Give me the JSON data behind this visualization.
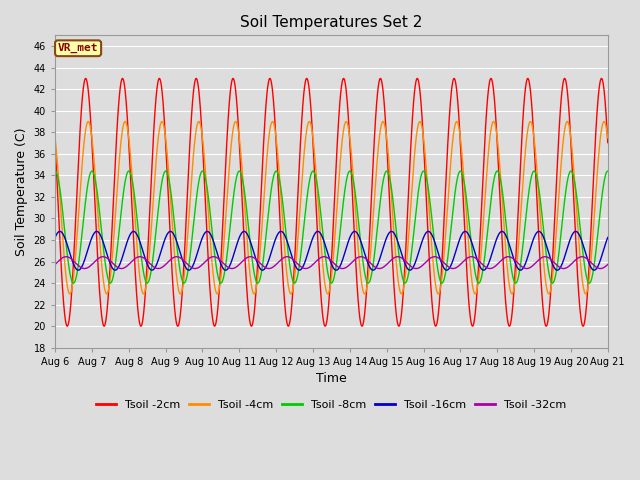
{
  "title": "Soil Temperatures Set 2",
  "xlabel": "Time",
  "ylabel": "Soil Temperature (C)",
  "annotation": "VR_met",
  "ylim": [
    18,
    47
  ],
  "yticks": [
    18,
    20,
    22,
    24,
    26,
    28,
    30,
    32,
    34,
    36,
    38,
    40,
    42,
    44,
    46
  ],
  "xtick_labels": [
    "Aug 6",
    "Aug 7",
    "Aug 8",
    "Aug 9",
    "Aug 10",
    "Aug 11",
    "Aug 12",
    "Aug 13",
    "Aug 14",
    "Aug 15",
    "Aug 16",
    "Aug 17",
    "Aug 18",
    "Aug 19",
    "Aug 20",
    "Aug 21"
  ],
  "series": [
    {
      "label": "Tsoil -2cm",
      "color": "#FF0000",
      "amplitude": 11.5,
      "mean": 31.5,
      "phase_shift": 0.58,
      "period": 1.0
    },
    {
      "label": "Tsoil -4cm",
      "color": "#FF8C00",
      "amplitude": 8.0,
      "mean": 31.0,
      "phase_shift": 0.65,
      "period": 1.0
    },
    {
      "label": "Tsoil -8cm",
      "color": "#00CC00",
      "amplitude": 5.2,
      "mean": 29.2,
      "phase_shift": 0.75,
      "period": 1.0
    },
    {
      "label": "Tsoil -16cm",
      "color": "#0000CC",
      "amplitude": 1.8,
      "mean": 27.0,
      "phase_shift": 0.88,
      "period": 1.0
    },
    {
      "label": "Tsoil -32cm",
      "color": "#AA00AA",
      "amplitude": 0.55,
      "mean": 25.9,
      "phase_shift": 0.05,
      "period": 1.0
    }
  ],
  "fig_width": 6.4,
  "fig_height": 4.8,
  "dpi": 100,
  "background_color": "#DDDDDD",
  "plot_bg_color": "#DDDDDD",
  "grid_color": "#FFFFFF",
  "title_fontsize": 11,
  "axis_label_fontsize": 9,
  "tick_fontsize": 7,
  "legend_fontsize": 8,
  "annotation_fontsize": 8,
  "line_width": 1.0,
  "annotation_bbox": {
    "boxstyle": "round,pad=0.25",
    "facecolor": "#FFFFAA",
    "edgecolor": "#8B4513",
    "linewidth": 1.5
  }
}
